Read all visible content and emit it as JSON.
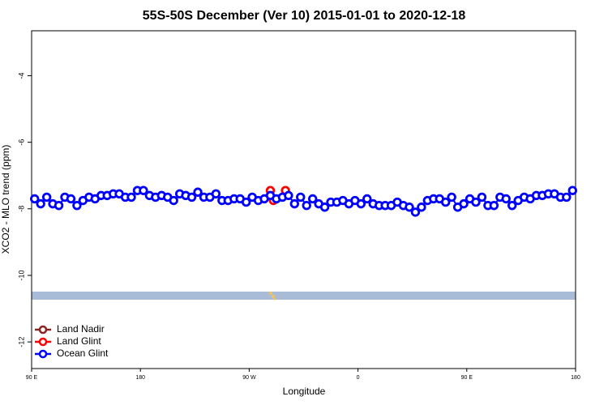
{
  "chart_data": {
    "type": "line",
    "title": "55S-50S December (Ver 10)   2015-01-01 to 2020-12-18",
    "x_label": "Longitude",
    "y_label": "XCO2 - MLO trend (ppm)",
    "xlim": [
      90,
      540
    ],
    "xticks": [
      {
        "value": 90,
        "label": "90 E"
      },
      {
        "value": 180,
        "label": "180"
      },
      {
        "value": 270,
        "label": "90 W"
      },
      {
        "value": 360,
        "label": "0"
      },
      {
        "value": 450,
        "label": "90 E"
      },
      {
        "value": 540,
        "label": "180"
      }
    ],
    "ylim": [
      -12.8,
      -2.65
    ],
    "yticks": [
      -12,
      -10,
      -8,
      -6,
      -4
    ],
    "legend": "bottom-left",
    "series": [
      {
        "name": "Land Nadir",
        "color": "#8b2323",
        "x": [],
        "values": []
      },
      {
        "name": "Land Glint",
        "color": "#ff0000",
        "x": [
          287.5,
          290,
          300
        ],
        "values": [
          -7.45,
          -7.75,
          -7.45
        ]
      },
      {
        "name": "Ocean Glint",
        "color": "#0000ff",
        "x": [
          92.5,
          97.5,
          102.5,
          107.5,
          112.5,
          117.5,
          122.5,
          127.5,
          132.5,
          137.5,
          142.5,
          147.5,
          152.5,
          157.5,
          162.5,
          167.5,
          172.5,
          177.5,
          182.5,
          187.5,
          192.5,
          197.5,
          202.5,
          207.5,
          212.5,
          217.5,
          222.5,
          227.5,
          232.5,
          237.5,
          242.5,
          247.5,
          252.5,
          257.5,
          262.5,
          267.5,
          272.5,
          277.5,
          282.5,
          287.5,
          292.5,
          297.5,
          302.5,
          307.5,
          312.5,
          317.5,
          322.5,
          327.5,
          332.5,
          337.5,
          342.5,
          347.5,
          352.5,
          357.5,
          362.5,
          367.5,
          372.5,
          377.5,
          382.5,
          387.5,
          392.5,
          397.5,
          402.5,
          407.5,
          412.5,
          417.5,
          422.5,
          427.5,
          432.5,
          437.5,
          442.5,
          447.5,
          452.5,
          457.5,
          462.5,
          467.5,
          472.5,
          477.5,
          482.5,
          487.5,
          492.5,
          497.5,
          502.5,
          507.5,
          512.5,
          517.5,
          522.5,
          527.5,
          532.5,
          537.5
        ],
        "values": [
          -7.7,
          -7.85,
          -7.65,
          -7.85,
          -7.9,
          -7.65,
          -7.7,
          -7.9,
          -7.75,
          -7.65,
          -7.7,
          -7.6,
          -7.6,
          -7.55,
          -7.55,
          -7.65,
          -7.65,
          -7.45,
          -7.45,
          -7.6,
          -7.65,
          -7.6,
          -7.65,
          -7.75,
          -7.55,
          -7.6,
          -7.65,
          -7.5,
          -7.65,
          -7.65,
          -7.55,
          -7.75,
          -7.75,
          -7.7,
          -7.7,
          -7.8,
          -7.65,
          -7.75,
          -7.7,
          -7.6,
          -7.7,
          -7.65,
          -7.6,
          -7.85,
          -7.65,
          -7.9,
          -7.7,
          -7.85,
          -7.95,
          -7.8,
          -7.8,
          -7.75,
          -7.85,
          -7.75,
          -7.85,
          -7.7,
          -7.85,
          -7.9,
          -7.9,
          -7.9,
          -7.8,
          -7.9,
          -7.95,
          -8.1,
          -7.95,
          -7.75,
          -7.7,
          -7.7,
          -7.8,
          -7.65,
          -7.95,
          -7.85,
          -7.7,
          -7.8,
          -7.65,
          -7.9,
          -7.9,
          -7.65,
          -7.7,
          -7.9,
          -7.75,
          -7.65,
          -7.7,
          -7.6,
          -7.6,
          -7.55,
          -7.55,
          -7.65,
          -7.65,
          -7.45
        ]
      }
    ]
  }
}
